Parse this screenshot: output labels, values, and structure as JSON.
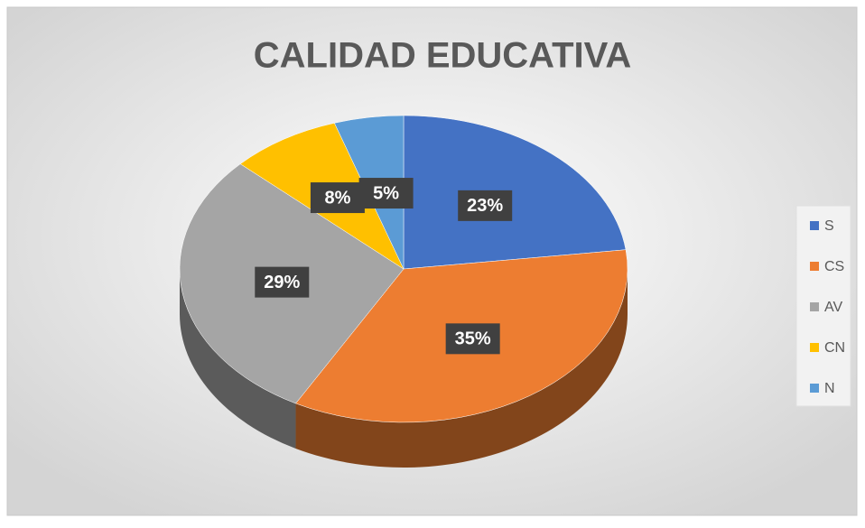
{
  "chart_data": {
    "type": "pie3d",
    "title": "CALIDAD EDUCATIVA",
    "categories": [
      "S",
      "CS",
      "AV",
      "CN",
      "N"
    ],
    "values": [
      23,
      35,
      29,
      8,
      5
    ],
    "value_labels": [
      "23%",
      "35%",
      "29%",
      "8%",
      "5%"
    ],
    "colors": [
      "#4472c4",
      "#ed7d31",
      "#a5a5a5",
      "#ffc000",
      "#5b9bd5"
    ],
    "legend": "right"
  }
}
